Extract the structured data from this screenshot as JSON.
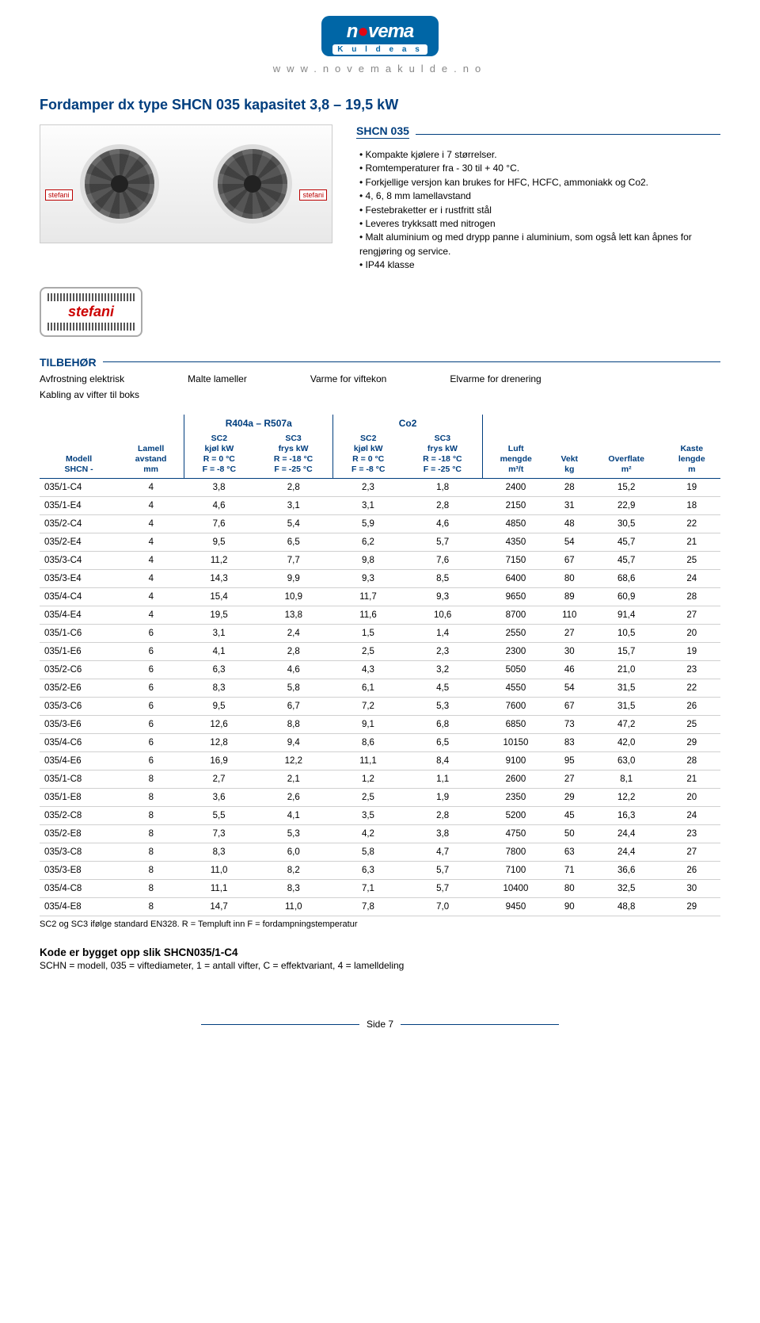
{
  "header": {
    "logo_main_pre": "n",
    "logo_main_post": "vema",
    "logo_sub": "K u l d e a s",
    "url": "www.novemakulde.no"
  },
  "title": "Fordamper dx type SHCN 035 kapasitet 3,8 – 19,5 kW",
  "product_label": "stefani",
  "spec": {
    "header": "SHCN 035",
    "items": [
      "Kompakte kjølere i 7 størrelser.",
      "Romtemperaturer fra - 30 til + 40 °C.",
      "Forkjellige versjon kan brukes for HFC, HCFC, ammoniakk og Co2.",
      "4, 6, 8  mm lamellavstand",
      "Festebraketter er i rustfritt stål",
      "Leveres trykksatt med nitrogen",
      "Malt aluminium og med drypp panne i aluminium, som også lett kan åpnes for rengjøring og service.",
      "IP44 klasse"
    ]
  },
  "brand_badge": "stefani",
  "tilbehor": {
    "label": "TILBEHØR",
    "items": [
      "Avfrostning elektrisk",
      "Malte lameller",
      "Varme for viftekon",
      "Elvarme for drenering"
    ],
    "kabling": "Kabling av vifter til boks"
  },
  "table": {
    "group1": "R404a – R507a",
    "group2": "Co2",
    "columns": {
      "c0": {
        "l1": "Modell",
        "l2": "SHCN -"
      },
      "c1": {
        "l1": "Lamell",
        "l2": "avstand",
        "l3": "mm"
      },
      "c2": {
        "l1": "SC2",
        "l2": "kjøl kW",
        "l3": "R = 0 °C",
        "l4": "F = -8 °C"
      },
      "c3": {
        "l1": "SC3",
        "l2": "frys kW",
        "l3": "R = -18 °C",
        "l4": "F = -25 °C"
      },
      "c4": {
        "l1": "SC2",
        "l2": "kjøl kW",
        "l3": "R = 0 °C",
        "l4": "F = -8 °C"
      },
      "c5": {
        "l1": "SC3",
        "l2": "frys kW",
        "l3": "R = -18 °C",
        "l4": "F = -25 °C"
      },
      "c6": {
        "l1": "Luft",
        "l2": "mengde",
        "l3": "m³/t"
      },
      "c7": {
        "l1": "Vekt",
        "l2": "kg"
      },
      "c8": {
        "l1": "Overflate",
        "l2": "m²"
      },
      "c9": {
        "l1": "Kaste",
        "l2": "lengde",
        "l3": "m"
      }
    },
    "rows": [
      [
        "035/1-C4",
        "4",
        "3,8",
        "2,8",
        "2,3",
        "1,8",
        "2400",
        "28",
        "15,2",
        "19"
      ],
      [
        "035/1-E4",
        "4",
        "4,6",
        "3,1",
        "3,1",
        "2,8",
        "2150",
        "31",
        "22,9",
        "18"
      ],
      [
        "035/2-C4",
        "4",
        "7,6",
        "5,4",
        "5,9",
        "4,6",
        "4850",
        "48",
        "30,5",
        "22"
      ],
      [
        "035/2-E4",
        "4",
        "9,5",
        "6,5",
        "6,2",
        "5,7",
        "4350",
        "54",
        "45,7",
        "21"
      ],
      [
        "035/3-C4",
        "4",
        "11,2",
        "7,7",
        "9,8",
        "7,6",
        "7150",
        "67",
        "45,7",
        "25"
      ],
      [
        "035/3-E4",
        "4",
        "14,3",
        "9,9",
        "9,3",
        "8,5",
        "6400",
        "80",
        "68,6",
        "24"
      ],
      [
        "035/4-C4",
        "4",
        "15,4",
        "10,9",
        "11,7",
        "9,3",
        "9650",
        "89",
        "60,9",
        "28"
      ],
      [
        "035/4-E4",
        "4",
        "19,5",
        "13,8",
        "11,6",
        "10,6",
        "8700",
        "110",
        "91,4",
        "27"
      ],
      [
        "035/1-C6",
        "6",
        "3,1",
        "2,4",
        "1,5",
        "1,4",
        "2550",
        "27",
        "10,5",
        "20"
      ],
      [
        "035/1-E6",
        "6",
        "4,1",
        "2,8",
        "2,5",
        "2,3",
        "2300",
        "30",
        "15,7",
        "19"
      ],
      [
        "035/2-C6",
        "6",
        "6,3",
        "4,6",
        "4,3",
        "3,2",
        "5050",
        "46",
        "21,0",
        "23"
      ],
      [
        "035/2-E6",
        "6",
        "8,3",
        "5,8",
        "6,1",
        "4,5",
        "4550",
        "54",
        "31,5",
        "22"
      ],
      [
        "035/3-C6",
        "6",
        "9,5",
        "6,7",
        "7,2",
        "5,3",
        "7600",
        "67",
        "31,5",
        "26"
      ],
      [
        "035/3-E6",
        "6",
        "12,6",
        "8,8",
        "9,1",
        "6,8",
        "6850",
        "73",
        "47,2",
        "25"
      ],
      [
        "035/4-C6",
        "6",
        "12,8",
        "9,4",
        "8,6",
        "6,5",
        "10150",
        "83",
        "42,0",
        "29"
      ],
      [
        "035/4-E6",
        "6",
        "16,9",
        "12,2",
        "11,1",
        "8,4",
        "9100",
        "95",
        "63,0",
        "28"
      ],
      [
        "035/1-C8",
        "8",
        "2,7",
        "2,1",
        "1,2",
        "1,1",
        "2600",
        "27",
        "8,1",
        "21"
      ],
      [
        "035/1-E8",
        "8",
        "3,6",
        "2,6",
        "2,5",
        "1,9",
        "2350",
        "29",
        "12,2",
        "20"
      ],
      [
        "035/2-C8",
        "8",
        "5,5",
        "4,1",
        "3,5",
        "2,8",
        "5200",
        "45",
        "16,3",
        "24"
      ],
      [
        "035/2-E8",
        "8",
        "7,3",
        "5,3",
        "4,2",
        "3,8",
        "4750",
        "50",
        "24,4",
        "23"
      ],
      [
        "035/3-C8",
        "8",
        "8,3",
        "6,0",
        "5,8",
        "4,7",
        "7800",
        "63",
        "24,4",
        "27"
      ],
      [
        "035/3-E8",
        "8",
        "11,0",
        "8,2",
        "6,3",
        "5,7",
        "7100",
        "71",
        "36,6",
        "26"
      ],
      [
        "035/4-C8",
        "8",
        "11,1",
        "8,3",
        "7,1",
        "5,7",
        "10400",
        "80",
        "32,5",
        "30"
      ],
      [
        "035/4-E8",
        "8",
        "14,7",
        "11,0",
        "7,8",
        "7,0",
        "9450",
        "90",
        "48,8",
        "29"
      ]
    ],
    "footnote": "SC2 og SC3 ifølge standard EN328. R = Templuft inn F = fordampningstemperatur"
  },
  "kode": {
    "title": "Kode er bygget opp slik SHCN035/1-C4",
    "text": "SCHN = modell, 035 = viftediameter, 1 = antall vifter, C = effektvariant, 4 = lamelldeling"
  },
  "footer": "Side 7",
  "colors": {
    "brand_blue": "#003e7e",
    "logo_blue": "#0066a6",
    "accent_red": "#c00000",
    "grey_text": "#888888"
  }
}
